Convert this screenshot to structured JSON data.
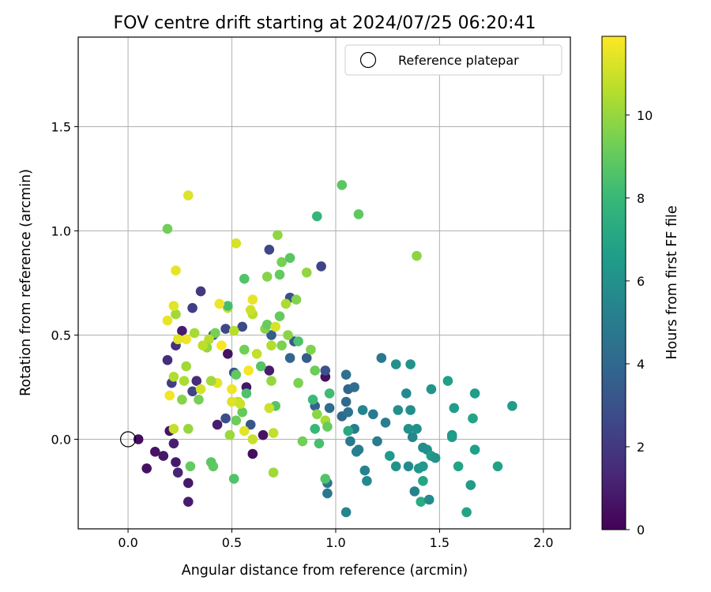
{
  "chart_data": {
    "type": "scatter",
    "title": "FOV centre drift starting at 2024/07/25 06:20:41",
    "xlabel": "Angular distance from reference (arcmin)",
    "ylabel": "Rotation from reference (arcmin)",
    "xlim": [
      -0.24,
      2.13
    ],
    "ylim": [
      -0.43,
      1.93
    ],
    "xticks": [
      0.0,
      0.5,
      1.0,
      1.5,
      2.0
    ],
    "yticks": [
      0.0,
      0.5,
      1.0,
      1.5
    ],
    "xtick_labels": [
      "0.0",
      "0.5",
      "1.0",
      "1.5",
      "2.0"
    ],
    "ytick_labels": [
      "0.0",
      "0.5",
      "1.0",
      "1.5"
    ],
    "grid": true,
    "legend": {
      "label": "Reference platepar",
      "placement": "top-right",
      "marker": "open-circle"
    },
    "reference_point": {
      "x": 0.0,
      "y": 0.0
    },
    "colorbar": {
      "label": "Hours from first FF file",
      "colormap": "viridis",
      "range": [
        0,
        11.9
      ],
      "ticks": [
        0,
        2,
        4,
        6,
        8,
        10
      ],
      "tick_labels": [
        "0",
        "2",
        "4",
        "6",
        "8",
        "10"
      ]
    },
    "colormap_stops": [
      "#440154",
      "#482878",
      "#3e4989",
      "#31688e",
      "#26828e",
      "#1f9e89",
      "#35b779",
      "#6ece58",
      "#b5de2b",
      "#fde725"
    ],
    "points": [
      {
        "x": 0.05,
        "y": 0.0,
        "h": 0.4
      },
      {
        "x": 0.09,
        "y": -0.14,
        "h": 0.5
      },
      {
        "x": 0.13,
        "y": -0.06,
        "h": 0.6
      },
      {
        "x": 0.17,
        "y": -0.08,
        "h": 0.7
      },
      {
        "x": 0.2,
        "y": 0.04,
        "h": 0.6
      },
      {
        "x": 0.22,
        "y": -0.02,
        "h": 1.0
      },
      {
        "x": 0.23,
        "y": -0.11,
        "h": 0.8
      },
      {
        "x": 0.24,
        "y": -0.16,
        "h": 1.2
      },
      {
        "x": 0.29,
        "y": -0.21,
        "h": 0.8
      },
      {
        "x": 0.29,
        "y": -0.3,
        "h": 0.9
      },
      {
        "x": 0.19,
        "y": 0.38,
        "h": 1.5
      },
      {
        "x": 0.21,
        "y": 0.27,
        "h": 2.2
      },
      {
        "x": 0.23,
        "y": 0.45,
        "h": 1.6
      },
      {
        "x": 0.26,
        "y": 0.52,
        "h": 0.9
      },
      {
        "x": 0.31,
        "y": 0.23,
        "h": 2.4
      },
      {
        "x": 0.33,
        "y": 0.28,
        "h": 1.5
      },
      {
        "x": 0.35,
        "y": 0.71,
        "h": 2.0
      },
      {
        "x": 0.31,
        "y": 0.63,
        "h": 2.2
      },
      {
        "x": 0.41,
        "y": 0.5,
        "h": 2.7
      },
      {
        "x": 0.43,
        "y": 0.07,
        "h": 1.0
      },
      {
        "x": 0.47,
        "y": 0.1,
        "h": 2.8
      },
      {
        "x": 0.48,
        "y": 0.41,
        "h": 0.6
      },
      {
        "x": 0.47,
        "y": 0.53,
        "h": 2.6
      },
      {
        "x": 0.51,
        "y": 0.32,
        "h": 3.0
      },
      {
        "x": 0.55,
        "y": 0.54,
        "h": 2.7
      },
      {
        "x": 0.57,
        "y": 0.25,
        "h": 0.7
      },
      {
        "x": 0.59,
        "y": 0.07,
        "h": 3.2
      },
      {
        "x": 0.6,
        "y": -0.07,
        "h": 0.4
      },
      {
        "x": 0.65,
        "y": 0.02,
        "h": 0.6
      },
      {
        "x": 0.68,
        "y": 0.33,
        "h": 0.9
      },
      {
        "x": 0.69,
        "y": 0.5,
        "h": 3.5
      },
      {
        "x": 0.68,
        "y": 0.91,
        "h": 2.6
      },
      {
        "x": 0.78,
        "y": 0.68,
        "h": 3.0
      },
      {
        "x": 0.78,
        "y": 0.39,
        "h": 3.9
      },
      {
        "x": 0.8,
        "y": 0.47,
        "h": 3.3
      },
      {
        "x": 0.86,
        "y": 0.39,
        "h": 3.4
      },
      {
        "x": 0.9,
        "y": 0.16,
        "h": 3.7
      },
      {
        "x": 0.93,
        "y": 0.83,
        "h": 2.4
      },
      {
        "x": 0.95,
        "y": 0.3,
        "h": 0.5
      },
      {
        "x": 0.95,
        "y": 0.33,
        "h": 3.1
      },
      {
        "x": 0.97,
        "y": 0.15,
        "h": 4.2
      },
      {
        "x": 0.96,
        "y": -0.26,
        "h": 4.8
      },
      {
        "x": 0.96,
        "y": -0.21,
        "h": 4.7
      },
      {
        "x": 1.03,
        "y": 0.11,
        "h": 4.0
      },
      {
        "x": 1.05,
        "y": 0.31,
        "h": 4.5
      },
      {
        "x": 1.05,
        "y": 0.18,
        "h": 4.1
      },
      {
        "x": 1.06,
        "y": 0.24,
        "h": 3.9
      },
      {
        "x": 1.06,
        "y": 0.13,
        "h": 4.6
      },
      {
        "x": 1.07,
        "y": -0.01,
        "h": 4.9
      },
      {
        "x": 1.09,
        "y": 0.05,
        "h": 5.0
      },
      {
        "x": 1.09,
        "y": 0.25,
        "h": 4.3
      },
      {
        "x": 1.1,
        "y": -0.06,
        "h": 5.3
      },
      {
        "x": 1.11,
        "y": -0.05,
        "h": 5.1
      },
      {
        "x": 1.13,
        "y": 0.14,
        "h": 5.4
      },
      {
        "x": 1.14,
        "y": -0.15,
        "h": 5.3
      },
      {
        "x": 1.15,
        "y": -0.2,
        "h": 5.6
      },
      {
        "x": 1.18,
        "y": 0.12,
        "h": 4.9
      },
      {
        "x": 1.2,
        "y": -0.01,
        "h": 5.0
      },
      {
        "x": 1.22,
        "y": 0.39,
        "h": 4.8
      },
      {
        "x": 1.24,
        "y": 0.08,
        "h": 5.1
      },
      {
        "x": 1.26,
        "y": -0.08,
        "h": 6.4
      },
      {
        "x": 1.29,
        "y": 0.36,
        "h": 6.0
      },
      {
        "x": 1.29,
        "y": -0.13,
        "h": 6.1
      },
      {
        "x": 1.3,
        "y": 0.14,
        "h": 5.9
      },
      {
        "x": 1.34,
        "y": 0.22,
        "h": 5.6
      },
      {
        "x": 1.35,
        "y": 0.05,
        "h": 6.0
      },
      {
        "x": 1.35,
        "y": -0.13,
        "h": 5.7
      },
      {
        "x": 1.36,
        "y": 0.36,
        "h": 6.1
      },
      {
        "x": 1.36,
        "y": 0.14,
        "h": 5.8
      },
      {
        "x": 1.37,
        "y": 0.01,
        "h": 5.5
      },
      {
        "x": 1.38,
        "y": -0.25,
        "h": 5.2
      },
      {
        "x": 1.39,
        "y": 0.05,
        "h": 6.0
      },
      {
        "x": 1.4,
        "y": -0.14,
        "h": 6.3
      },
      {
        "x": 1.41,
        "y": -0.3,
        "h": 7.3
      },
      {
        "x": 1.42,
        "y": -0.13,
        "h": 6.4
      },
      {
        "x": 1.42,
        "y": -0.04,
        "h": 5.8
      },
      {
        "x": 1.42,
        "y": -0.2,
        "h": 7.0
      },
      {
        "x": 1.44,
        "y": -0.05,
        "h": 5.9
      },
      {
        "x": 1.45,
        "y": -0.29,
        "h": 5.7
      },
      {
        "x": 1.46,
        "y": 0.24,
        "h": 6.2
      },
      {
        "x": 1.46,
        "y": -0.08,
        "h": 6.5
      },
      {
        "x": 1.48,
        "y": -0.09,
        "h": 6.1
      },
      {
        "x": 1.54,
        "y": 0.28,
        "h": 6.7
      },
      {
        "x": 1.56,
        "y": 0.02,
        "h": 6.3
      },
      {
        "x": 1.56,
        "y": 0.01,
        "h": 6.5
      },
      {
        "x": 1.57,
        "y": 0.15,
        "h": 6.6
      },
      {
        "x": 1.59,
        "y": -0.13,
        "h": 6.8
      },
      {
        "x": 1.63,
        "y": -0.35,
        "h": 6.9
      },
      {
        "x": 1.65,
        "y": -0.22,
        "h": 6.5
      },
      {
        "x": 1.66,
        "y": 0.1,
        "h": 6.9
      },
      {
        "x": 1.67,
        "y": 0.22,
        "h": 6.6
      },
      {
        "x": 1.67,
        "y": -0.05,
        "h": 6.7
      },
      {
        "x": 1.78,
        "y": -0.13,
        "h": 6.8
      },
      {
        "x": 1.85,
        "y": 0.16,
        "h": 6.5
      },
      {
        "x": 1.05,
        "y": -0.35,
        "h": 5.4
      },
      {
        "x": 1.06,
        "y": 0.04,
        "h": 7.2
      },
      {
        "x": 0.9,
        "y": 0.05,
        "h": 8.0
      },
      {
        "x": 0.92,
        "y": -0.02,
        "h": 8.4
      },
      {
        "x": 0.95,
        "y": -0.19,
        "h": 8.6
      },
      {
        "x": 0.97,
        "y": 0.22,
        "h": 8.2
      },
      {
        "x": 1.03,
        "y": 1.22,
        "h": 8.8
      },
      {
        "x": 1.11,
        "y": 1.08,
        "h": 8.9
      },
      {
        "x": 0.91,
        "y": 1.07,
        "h": 7.9
      },
      {
        "x": 1.39,
        "y": 0.88,
        "h": 9.8
      },
      {
        "x": 0.72,
        "y": 0.98,
        "h": 9.9
      },
      {
        "x": 0.19,
        "y": 1.01,
        "h": 9.3
      },
      {
        "x": 0.29,
        "y": 1.17,
        "h": 11.3
      },
      {
        "x": 0.23,
        "y": 0.81,
        "h": 11.5
      },
      {
        "x": 0.52,
        "y": 0.94,
        "h": 11.2
      },
      {
        "x": 0.56,
        "y": 0.77,
        "h": 8.6
      },
      {
        "x": 0.67,
        "y": 0.78,
        "h": 9.7
      },
      {
        "x": 0.74,
        "y": 0.85,
        "h": 9.4
      },
      {
        "x": 0.78,
        "y": 0.87,
        "h": 8.8
      },
      {
        "x": 0.73,
        "y": 0.79,
        "h": 9.0
      },
      {
        "x": 0.86,
        "y": 0.8,
        "h": 9.9
      },
      {
        "x": 0.82,
        "y": 0.47,
        "h": 8.5
      },
      {
        "x": 0.88,
        "y": 0.43,
        "h": 9.6
      },
      {
        "x": 0.9,
        "y": 0.33,
        "h": 9.2
      },
      {
        "x": 0.82,
        "y": 0.27,
        "h": 9.5
      },
      {
        "x": 0.89,
        "y": 0.19,
        "h": 8.1
      },
      {
        "x": 0.91,
        "y": 0.12,
        "h": 9.8
      },
      {
        "x": 0.95,
        "y": 0.09,
        "h": 10.3
      },
      {
        "x": 0.96,
        "y": 0.06,
        "h": 9.1
      },
      {
        "x": 0.84,
        "y": -0.01,
        "h": 9.3
      },
      {
        "x": 0.71,
        "y": 0.16,
        "h": 8.7
      },
      {
        "x": 0.68,
        "y": 0.15,
        "h": 11.0
      },
      {
        "x": 0.69,
        "y": 0.28,
        "h": 10.0
      },
      {
        "x": 0.69,
        "y": 0.45,
        "h": 10.5
      },
      {
        "x": 0.66,
        "y": 0.53,
        "h": 9.7
      },
      {
        "x": 0.64,
        "y": 0.35,
        "h": 8.7
      },
      {
        "x": 0.67,
        "y": 0.55,
        "h": 9.1
      },
      {
        "x": 0.71,
        "y": 0.54,
        "h": 11.2
      },
      {
        "x": 0.73,
        "y": 0.59,
        "h": 9.0
      },
      {
        "x": 0.76,
        "y": 0.65,
        "h": 10.4
      },
      {
        "x": 0.81,
        "y": 0.67,
        "h": 9.6
      },
      {
        "x": 0.62,
        "y": 0.41,
        "h": 10.8
      },
      {
        "x": 0.6,
        "y": 0.6,
        "h": 10.6
      },
      {
        "x": 0.6,
        "y": 0.67,
        "h": 11.5
      },
      {
        "x": 0.58,
        "y": 0.33,
        "h": 11.7
      },
      {
        "x": 0.56,
        "y": 0.43,
        "h": 9.3
      },
      {
        "x": 0.57,
        "y": 0.22,
        "h": 8.5
      },
      {
        "x": 0.55,
        "y": 0.13,
        "h": 9.0
      },
      {
        "x": 0.53,
        "y": 0.18,
        "h": 10.7
      },
      {
        "x": 0.52,
        "y": 0.09,
        "h": 9.2
      },
      {
        "x": 0.51,
        "y": -0.19,
        "h": 8.6
      },
      {
        "x": 0.49,
        "y": 0.02,
        "h": 10.1
      },
      {
        "x": 0.5,
        "y": 0.18,
        "h": 11.3
      },
      {
        "x": 0.5,
        "y": 0.24,
        "h": 11.6
      },
      {
        "x": 0.48,
        "y": 0.63,
        "h": 10.9
      },
      {
        "x": 0.48,
        "y": 0.64,
        "h": 8.3
      },
      {
        "x": 0.45,
        "y": 0.45,
        "h": 11.8
      },
      {
        "x": 0.44,
        "y": 0.65,
        "h": 11.6
      },
      {
        "x": 0.43,
        "y": 0.27,
        "h": 11.4
      },
      {
        "x": 0.42,
        "y": 0.51,
        "h": 9.4
      },
      {
        "x": 0.4,
        "y": 0.28,
        "h": 10.2
      },
      {
        "x": 0.39,
        "y": 0.48,
        "h": 10.6
      },
      {
        "x": 0.38,
        "y": 0.44,
        "h": 9.9
      },
      {
        "x": 0.36,
        "y": 0.45,
        "h": 10.7
      },
      {
        "x": 0.35,
        "y": 0.24,
        "h": 11.1
      },
      {
        "x": 0.34,
        "y": 0.19,
        "h": 9.4
      },
      {
        "x": 0.32,
        "y": 0.51,
        "h": 10.3
      },
      {
        "x": 0.29,
        "y": 0.05,
        "h": 10.0
      },
      {
        "x": 0.28,
        "y": 0.35,
        "h": 10.2
      },
      {
        "x": 0.28,
        "y": 0.48,
        "h": 11.6
      },
      {
        "x": 0.27,
        "y": 0.28,
        "h": 10.4
      },
      {
        "x": 0.26,
        "y": 0.19,
        "h": 9.7
      },
      {
        "x": 0.24,
        "y": 0.48,
        "h": 11.4
      },
      {
        "x": 0.23,
        "y": 0.6,
        "h": 10.2
      },
      {
        "x": 0.22,
        "y": 0.3,
        "h": 10.5
      },
      {
        "x": 0.22,
        "y": 0.64,
        "h": 11.4
      },
      {
        "x": 0.2,
        "y": 0.21,
        "h": 11.7
      },
      {
        "x": 0.19,
        "y": 0.57,
        "h": 11.5
      },
      {
        "x": 0.22,
        "y": 0.05,
        "h": 10.8
      },
      {
        "x": 0.3,
        "y": -0.13,
        "h": 9.0
      },
      {
        "x": 0.4,
        "y": -0.11,
        "h": 8.8
      },
      {
        "x": 0.41,
        "y": -0.13,
        "h": 8.9
      },
      {
        "x": 0.7,
        "y": -0.16,
        "h": 10.2
      },
      {
        "x": 0.7,
        "y": 0.03,
        "h": 10.8
      },
      {
        "x": 0.6,
        "y": 0.0,
        "h": 10.9
      },
      {
        "x": 0.56,
        "y": 0.04,
        "h": 11.4
      },
      {
        "x": 0.52,
        "y": 0.31,
        "h": 8.9
      },
      {
        "x": 0.54,
        "y": 0.17,
        "h": 11.0
      },
      {
        "x": 0.51,
        "y": 0.52,
        "h": 10.6
      },
      {
        "x": 0.59,
        "y": 0.62,
        "h": 11.0
      },
      {
        "x": 0.74,
        "y": 0.45,
        "h": 9.5
      },
      {
        "x": 0.77,
        "y": 0.5,
        "h": 9.8
      }
    ]
  }
}
